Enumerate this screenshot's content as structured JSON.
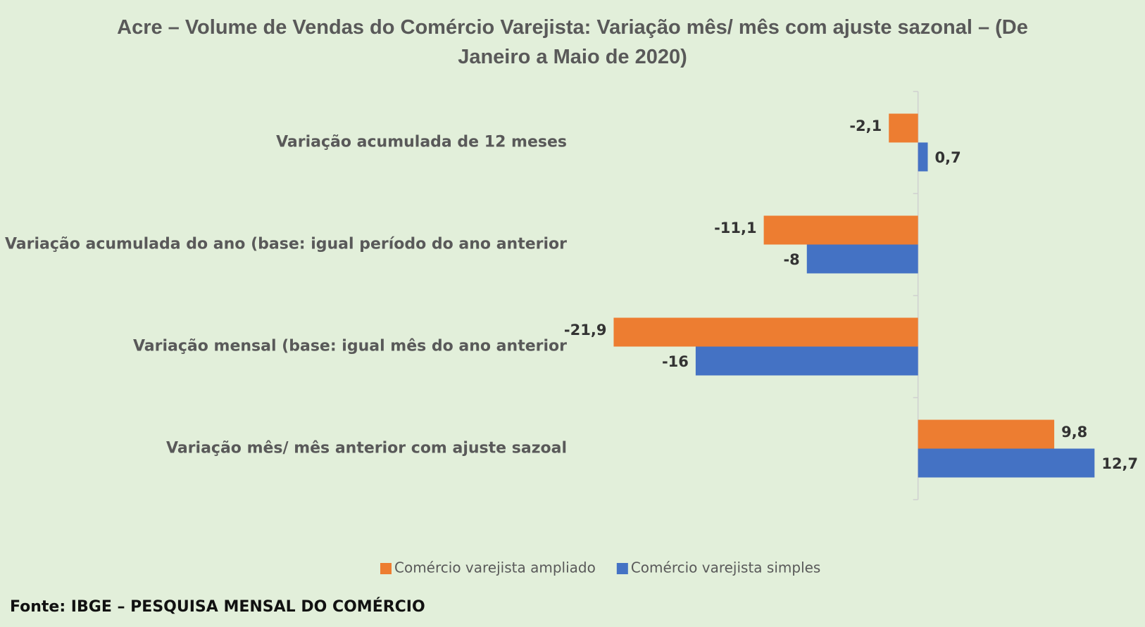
{
  "chart_data": {
    "type": "hbar",
    "title": "Acre – Volume de Vendas do Comércio Varejista: Variação mês/ mês com ajuste sazonal – (De Janeiro a Maio de 2020)",
    "categories": [
      "Variação acumulada de 12 meses",
      "Variação acumulada do ano (base: igual período do ano anterior",
      "Variação mensal (base: igual mês do ano anterior",
      "Variação mês/ mês anterior com ajuste sazoal"
    ],
    "series": [
      {
        "name": "Comércio varejista ampliado",
        "color": "#ed7d31",
        "values": [
          -2.1,
          -11.1,
          -21.9,
          9.8
        ],
        "value_labels": [
          "-2,1",
          "-11,1",
          "-21,9",
          "9,8"
        ]
      },
      {
        "name": "Comércio varejista simples",
        "color": "#4472c4",
        "values": [
          0.7,
          -8,
          -16,
          12.7
        ],
        "value_labels": [
          "0,7",
          "-8",
          "-16",
          "12,7"
        ]
      }
    ],
    "xlim": [
      -24,
      14
    ],
    "legend": "bottom",
    "source": "Fonte: IBGE – PESQUISA MENSAL DO COMÉRCIO"
  }
}
